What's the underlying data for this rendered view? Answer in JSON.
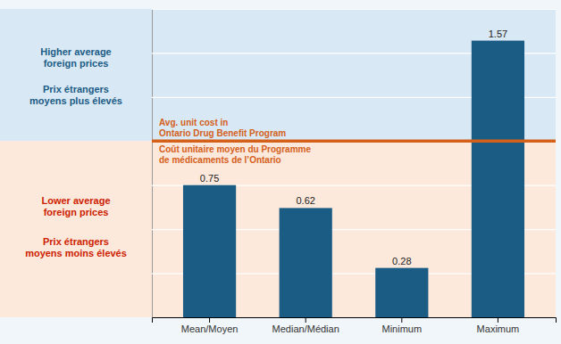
{
  "chart_data": {
    "type": "bar",
    "categories": [
      "Mean/Moyen",
      "Median/Médian",
      "Minimum",
      "Maximum"
    ],
    "values": [
      0.75,
      0.62,
      0.28,
      1.57
    ],
    "color": "#1b5c85",
    "ylim": [
      0,
      1.75
    ],
    "yticks": [
      0.0,
      0.25,
      0.5,
      0.75,
      1.0,
      1.25,
      1.5,
      1.75
    ],
    "grid": true,
    "grid_color": "#ffffff",
    "tick_labels": "x",
    "data_labels": true,
    "background": "#f0f6fa",
    "reference_line": {
      "value": 1.0,
      "color": "#d4601a",
      "labels": [
        "Avg. unit cost in\nOntario Drug Benefit Program",
        "Coût unitaire moyen du Programme\nde médicaments de l’Ontario"
      ]
    },
    "regions": [
      {
        "position": "above",
        "color": "#d9e8f5",
        "text_color": "#1b5c85",
        "texts": [
          "Higher average\nforeign prices",
          "Prix étrangers\nmoyens plus élevés"
        ]
      },
      {
        "position": "below",
        "color": "#fde8dc",
        "text_color": "#cc2200",
        "texts": [
          "Lower average\nforeign prices",
          "Prix étrangers\nmoyens moins élevés"
        ]
      }
    ]
  }
}
